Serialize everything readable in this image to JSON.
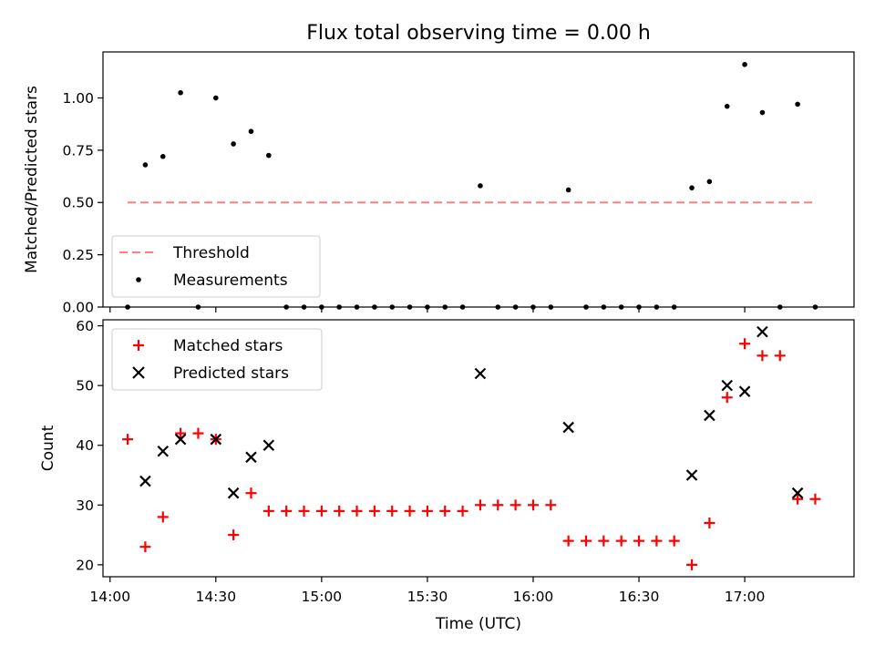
{
  "chart_data": [
    {
      "type": "scatter",
      "title": "Flux total observing time = 0.00 h",
      "xlabel": "",
      "ylabel": "Matched/Predicted stars",
      "ylim": [
        0,
        1.22
      ],
      "yticks": [
        "0.00",
        "0.25",
        "0.50",
        "0.75",
        "1.00"
      ],
      "legend": {
        "placement": "lower-left",
        "entries": [
          "Threshold",
          "Measurements"
        ]
      },
      "threshold": {
        "name": "Threshold",
        "value": 0.5,
        "x_start": "14:05",
        "x_end": "17:20",
        "color": "#ff7f7f"
      },
      "series": [
        {
          "name": "Measurements",
          "color": "#000000",
          "points": [
            [
              "14:05",
              0
            ],
            [
              "14:10",
              0.68
            ],
            [
              "14:15",
              0.72
            ],
            [
              "14:20",
              1.025
            ],
            [
              "14:25",
              0
            ],
            [
              "14:30",
              1.0
            ],
            [
              "14:35",
              0.78
            ],
            [
              "14:40",
              0.84
            ],
            [
              "14:45",
              0.725
            ],
            [
              "14:50",
              0
            ],
            [
              "14:55",
              0
            ],
            [
              "15:00",
              0
            ],
            [
              "15:05",
              0
            ],
            [
              "15:10",
              0
            ],
            [
              "15:15",
              0
            ],
            [
              "15:20",
              0
            ],
            [
              "15:25",
              0
            ],
            [
              "15:30",
              0
            ],
            [
              "15:35",
              0
            ],
            [
              "15:40",
              0
            ],
            [
              "15:45",
              0.58
            ],
            [
              "15:50",
              0
            ],
            [
              "15:55",
              0
            ],
            [
              "16:00",
              0
            ],
            [
              "16:05",
              0
            ],
            [
              "16:10",
              0.56
            ],
            [
              "16:15",
              0
            ],
            [
              "16:20",
              0
            ],
            [
              "16:25",
              0
            ],
            [
              "16:30",
              0
            ],
            [
              "16:35",
              0
            ],
            [
              "16:40",
              0
            ],
            [
              "16:45",
              0.57
            ],
            [
              "16:50",
              0.6
            ],
            [
              "16:55",
              0.96
            ],
            [
              "17:00",
              1.16
            ],
            [
              "17:05",
              0.93
            ],
            [
              "17:10",
              0
            ],
            [
              "17:15",
              0.97
            ],
            [
              "17:20",
              0
            ]
          ]
        }
      ]
    },
    {
      "type": "scatter",
      "title": "",
      "xlabel": "Time (UTC)",
      "ylabel": "Count",
      "ylim": [
        18,
        61
      ],
      "yticks": [
        "20",
        "30",
        "40",
        "50",
        "60"
      ],
      "xlim": [
        "13:58",
        "17:31"
      ],
      "xticks": [
        "14:00",
        "14:30",
        "15:00",
        "15:30",
        "16:00",
        "16:30",
        "17:00"
      ],
      "legend": {
        "placement": "upper-left",
        "entries": [
          "Matched stars",
          "Predicted stars"
        ]
      },
      "series": [
        {
          "name": "Matched stars",
          "marker": "plus",
          "color": "#ff0000",
          "points": [
            [
              "14:05",
              41
            ],
            [
              "14:10",
              23
            ],
            [
              "14:15",
              28
            ],
            [
              "14:20",
              42
            ],
            [
              "14:25",
              42
            ],
            [
              "14:30",
              41
            ],
            [
              "14:35",
              25
            ],
            [
              "14:40",
              32
            ],
            [
              "14:45",
              29
            ],
            [
              "14:50",
              29
            ],
            [
              "14:55",
              29
            ],
            [
              "15:00",
              29
            ],
            [
              "15:05",
              29
            ],
            [
              "15:10",
              29
            ],
            [
              "15:15",
              29
            ],
            [
              "15:20",
              29
            ],
            [
              "15:25",
              29
            ],
            [
              "15:30",
              29
            ],
            [
              "15:35",
              29
            ],
            [
              "15:40",
              29
            ],
            [
              "15:45",
              30
            ],
            [
              "15:50",
              30
            ],
            [
              "15:55",
              30
            ],
            [
              "16:00",
              30
            ],
            [
              "16:05",
              30
            ],
            [
              "16:10",
              24
            ],
            [
              "16:15",
              24
            ],
            [
              "16:20",
              24
            ],
            [
              "16:25",
              24
            ],
            [
              "16:30",
              24
            ],
            [
              "16:35",
              24
            ],
            [
              "16:40",
              24
            ],
            [
              "16:45",
              20
            ],
            [
              "16:50",
              27
            ],
            [
              "16:55",
              48
            ],
            [
              "17:00",
              57
            ],
            [
              "17:05",
              55
            ],
            [
              "17:10",
              55
            ],
            [
              "17:15",
              31
            ],
            [
              "17:20",
              31
            ]
          ]
        },
        {
          "name": "Predicted stars",
          "marker": "x",
          "color": "#000000",
          "points": [
            [
              "14:10",
              34
            ],
            [
              "14:15",
              39
            ],
            [
              "14:20",
              41
            ],
            [
              "14:30",
              41
            ],
            [
              "14:35",
              32
            ],
            [
              "14:40",
              38
            ],
            [
              "14:45",
              40
            ],
            [
              "15:45",
              52
            ],
            [
              "16:10",
              43
            ],
            [
              "16:45",
              35
            ],
            [
              "16:50",
              45
            ],
            [
              "16:55",
              50
            ],
            [
              "17:00",
              49
            ],
            [
              "17:05",
              59
            ],
            [
              "17:15",
              32
            ]
          ]
        }
      ]
    }
  ]
}
